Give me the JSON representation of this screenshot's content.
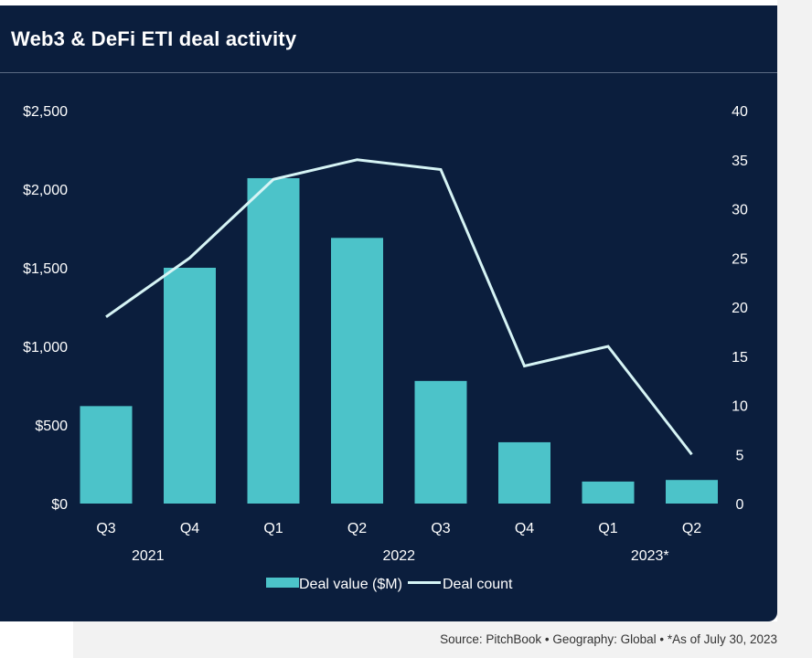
{
  "title": "Web3 & DeFi ETI deal activity",
  "footer": "Source: PitchBook  •  Geography: Global  •  *As of July 30, 2023",
  "colors": {
    "background": "#0b1e3d",
    "bar": "#4cc3c9",
    "line": "#d6f4f5",
    "text": "#ffffff"
  },
  "chart_data": {
    "type": "bar",
    "categories": [
      "Q3",
      "Q4",
      "Q1",
      "Q2",
      "Q3",
      "Q4",
      "Q1",
      "Q2"
    ],
    "year_labels": [
      {
        "label": "2021",
        "category_index": 0.5
      },
      {
        "label": "2022",
        "category_index": 3.5
      },
      {
        "label": "2023*",
        "category_index": 6.5
      }
    ],
    "series": [
      {
        "name": "Deal value ($M)",
        "type": "bar",
        "axis": "left",
        "values": [
          620,
          1500,
          2070,
          1690,
          780,
          390,
          140,
          150
        ]
      },
      {
        "name": "Deal count",
        "type": "line",
        "axis": "right",
        "values": [
          19,
          25,
          33,
          35,
          34,
          14,
          16,
          5
        ]
      }
    ],
    "y_left": {
      "ylim": [
        0,
        2500
      ],
      "ticks": [
        "$0",
        "$500",
        "$1,000",
        "$1,500",
        "$2,000",
        "$2,500"
      ],
      "tick_values": [
        0,
        500,
        1000,
        1500,
        2000,
        2500
      ]
    },
    "y_right": {
      "ylim": [
        0,
        40
      ],
      "ticks": [
        "0",
        "5",
        "10",
        "15",
        "20",
        "25",
        "30",
        "35",
        "40"
      ],
      "tick_values": [
        0,
        5,
        10,
        15,
        20,
        25,
        30,
        35,
        40
      ]
    },
    "grid": false,
    "legend": "bottom-center"
  }
}
